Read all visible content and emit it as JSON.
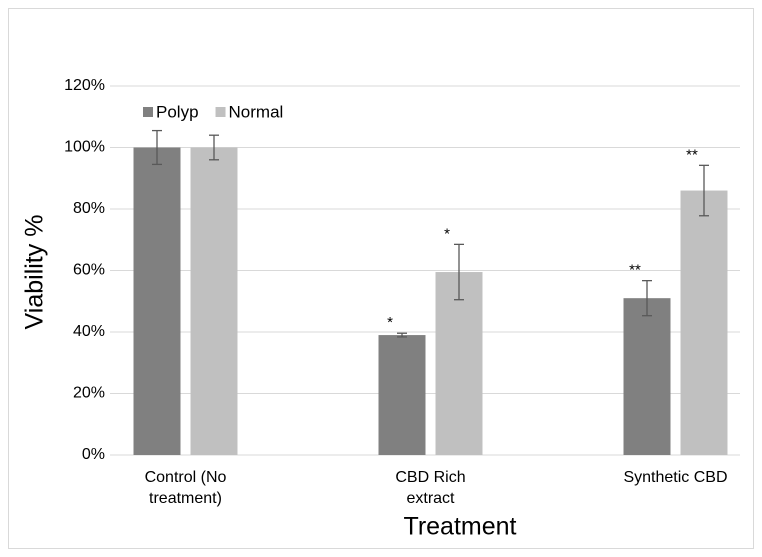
{
  "chart_data": {
    "type": "bar",
    "x_label": "Treatment",
    "y_label": "Viability %",
    "categories": [
      "Control (No treatment)",
      "CBD Rich extract",
      "Synthetic CBD"
    ],
    "series": [
      {
        "name": "Polyp",
        "color": "#808080",
        "values": [
          100,
          39,
          51
        ],
        "errors": [
          5.5,
          0.6,
          5.7
        ],
        "significance": [
          null,
          "*",
          "**"
        ]
      },
      {
        "name": "Normal",
        "color": "#c0c0c0",
        "values": [
          100,
          59.5,
          86
        ],
        "errors": [
          4,
          9,
          8.2
        ],
        "significance": [
          null,
          "*",
          "**"
        ]
      }
    ],
    "ylim": [
      0,
      120
    ],
    "yticks": [
      {
        "value": 0,
        "label": "0%"
      },
      {
        "value": 20,
        "label": "20%"
      },
      {
        "value": 40,
        "label": "40%"
      },
      {
        "value": 60,
        "label": "60%"
      },
      {
        "value": 80,
        "label": "80%"
      },
      {
        "value": 100,
        "label": "100%"
      },
      {
        "value": 120,
        "label": "120%"
      }
    ],
    "grid": true,
    "legend": "top-left"
  }
}
